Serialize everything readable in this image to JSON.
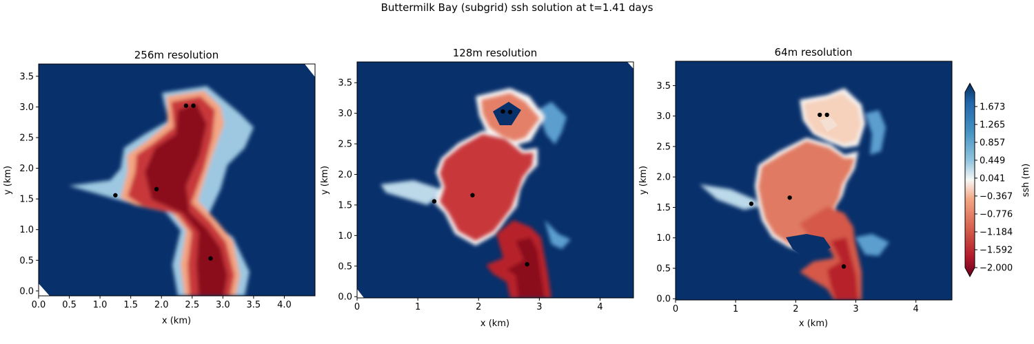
{
  "figure": {
    "suptitle": "Buttermilk Bay (subgrid) ssh solution at t=1.41 days"
  },
  "colors": {
    "water_high": "#08306b",
    "red_deep": "#8b0a1f",
    "red_mid": "#c8393b",
    "orange": "#e07a62",
    "salmon_light": "#f6d2bd",
    "near_zero": "#f7f6f6",
    "blue_mid": "#4f95c7",
    "blue_light": "#a9cfe5",
    "marker": "#000000"
  },
  "chart_data": [
    {
      "type": "heatmap",
      "title": "256m resolution",
      "xlabel": "x (km)",
      "ylabel": "y (km)",
      "xlim": [
        0.0,
        4.5
      ],
      "ylim": [
        -0.08,
        3.7
      ],
      "xticks": [
        "0.0",
        "0.5",
        "1.0",
        "1.5",
        "2.0",
        "2.5",
        "3.0",
        "3.5",
        "4.0"
      ],
      "yticks": [
        "0.0",
        "0.5",
        "1.0",
        "1.5",
        "2.0",
        "2.5",
        "3.0",
        "3.5"
      ],
      "markers": [
        [
          2.4,
          3.02
        ],
        [
          2.52,
          3.02
        ],
        [
          1.25,
          1.56
        ],
        [
          1.92,
          1.66
        ],
        [
          2.8,
          0.53
        ]
      ]
    },
    {
      "type": "heatmap",
      "title": "128m resolution",
      "xlabel": "x (km)",
      "ylabel": "y (km)",
      "xlim": [
        0.0,
        4.55
      ],
      "ylim": [
        -0.02,
        3.84
      ],
      "xticks": [
        "0",
        "1",
        "2",
        "3",
        "4"
      ],
      "yticks": [
        "0.0",
        "0.5",
        "1.0",
        "1.5",
        "2.0",
        "2.5",
        "3.0",
        "3.5"
      ],
      "markers": [
        [
          2.4,
          3.03
        ],
        [
          2.52,
          3.02
        ],
        [
          1.27,
          1.56
        ],
        [
          1.9,
          1.66
        ],
        [
          2.8,
          0.53
        ]
      ]
    },
    {
      "type": "heatmap",
      "title": "64m resolution",
      "xlabel": "x (km)",
      "ylabel": "y (km)",
      "xlim": [
        0.0,
        4.6
      ],
      "ylim": [
        -0.02,
        3.9
      ],
      "xticks": [
        "0",
        "1",
        "2",
        "3",
        "4"
      ],
      "yticks": [
        "0.0",
        "0.5",
        "1.0",
        "1.5",
        "2.0",
        "2.5",
        "3.0",
        "3.5"
      ],
      "markers": [
        [
          2.4,
          3.02
        ],
        [
          2.52,
          3.02
        ],
        [
          1.26,
          1.56
        ],
        [
          1.9,
          1.66
        ],
        [
          2.8,
          0.53
        ]
      ]
    }
  ],
  "colorbar": {
    "label": "ssh (m)",
    "range": [
      -2.0,
      2.0
    ],
    "ticks": [
      "1.673",
      "1.265",
      "0.857",
      "0.449",
      "0.041",
      "−0.367",
      "−0.776",
      "−1.184",
      "−1.592",
      "−2.000"
    ],
    "tick_values": [
      1.673,
      1.265,
      0.857,
      0.449,
      0.041,
      -0.367,
      -0.776,
      -1.184,
      -1.592,
      -2.0
    ],
    "colormap": "RdBu"
  }
}
